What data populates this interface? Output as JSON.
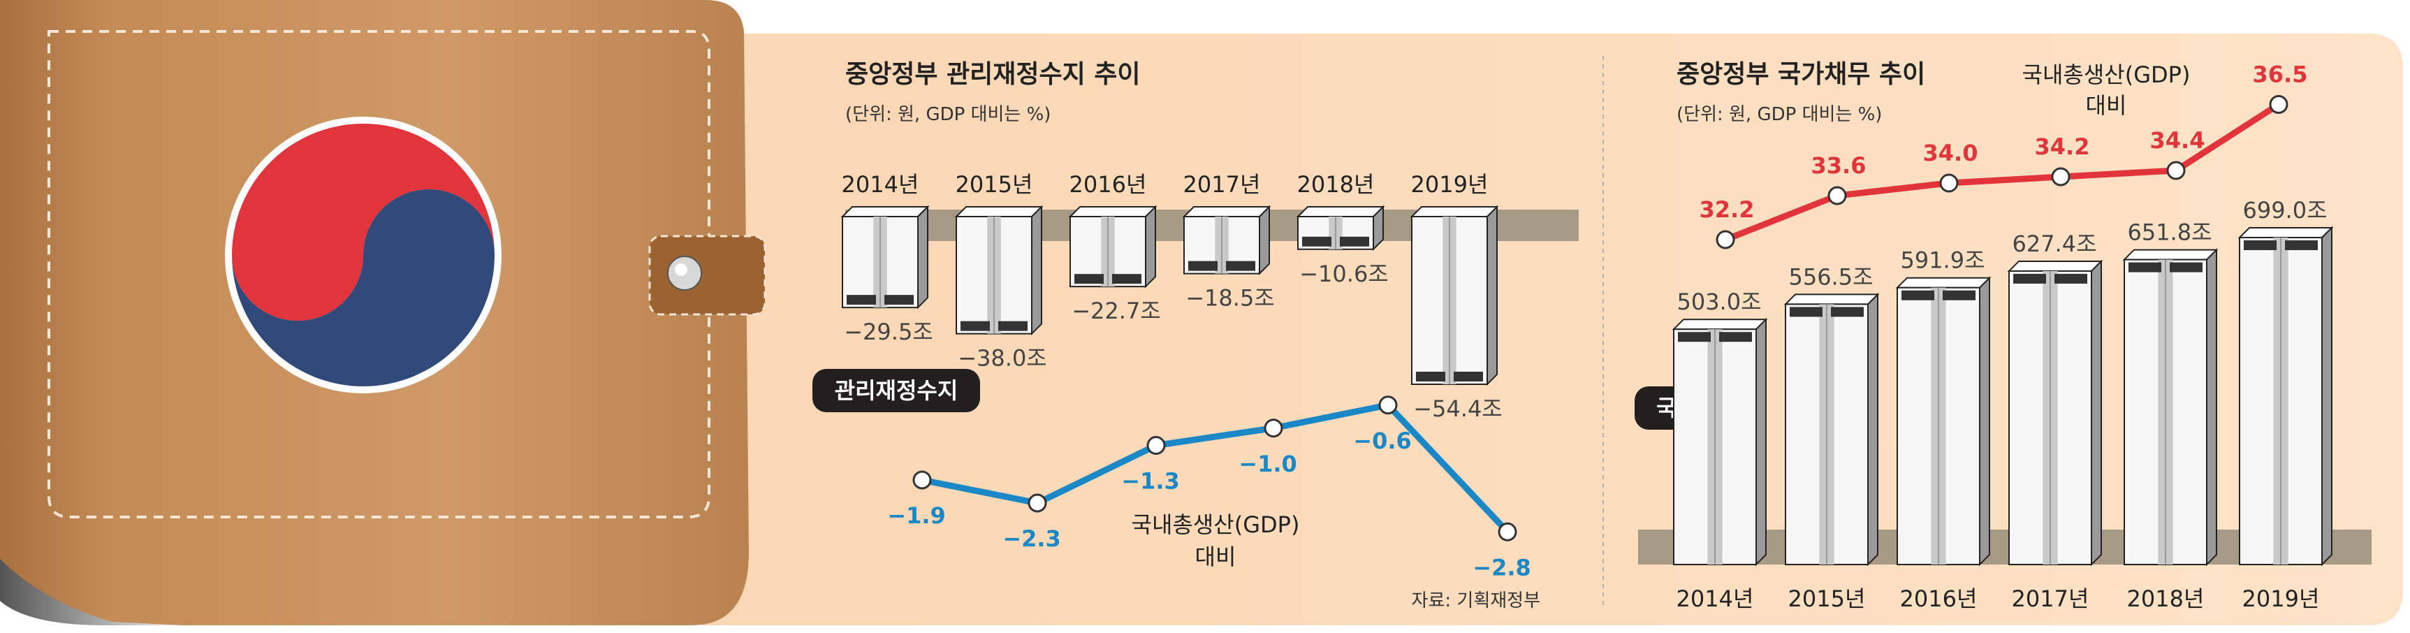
{
  "left_panel": {
    "title": "중앙정부 관리재정수지 추이",
    "unit": "(단위: 원, GDP 대비는 %)",
    "series_label": "관리재정수지",
    "ratio_label_line1": "국내총생산(GDP)",
    "ratio_label_line2": "대비",
    "source": "자료: 기획재정부"
  },
  "right_panel": {
    "title": "중앙정부 국가채무 추이",
    "unit": "(단위: 원, GDP 대비는 %)",
    "series_label": "국가채무",
    "ratio_label_line1": "국내총생산(GDP)",
    "ratio_label_line2": "대비"
  },
  "colors": {
    "wallet": "#c8925e",
    "wallet_dark": "#a8713f",
    "panel_bg": "#fcdcbc",
    "band": "#a79a85",
    "deficit_line": "#1a87c7",
    "debt_line": "#e1343b",
    "flag_blue": "#314a7a",
    "flag_red": "#e1343b"
  },
  "chart_data": [
    {
      "type": "bar",
      "title": "중앙정부 관리재정수지 추이",
      "categories": [
        "2014년",
        "2015년",
        "2016년",
        "2017년",
        "2018년",
        "2019년"
      ],
      "series": [
        {
          "name": "관리재정수지",
          "values": [
            -29.5,
            -38.0,
            -22.7,
            -18.5,
            -10.6,
            -54.4
          ],
          "labels": [
            "−29.5조",
            "−38.0조",
            "−22.7조",
            "−18.5조",
            "−10.6조",
            "−54.4조"
          ]
        },
        {
          "name": "국내총생산(GDP) 대비",
          "type": "line",
          "values": [
            -1.9,
            -2.3,
            -1.3,
            -1.0,
            -0.6,
            -2.8
          ],
          "labels": [
            "−1.9",
            "−2.3",
            "−1.3",
            "−1.0",
            "−0.6",
            "−2.8"
          ]
        }
      ]
    },
    {
      "type": "bar",
      "title": "중앙정부 국가채무 추이",
      "categories": [
        "2014년",
        "2015년",
        "2016년",
        "2017년",
        "2018년",
        "2019년"
      ],
      "series": [
        {
          "name": "국가채무",
          "values": [
            503.0,
            556.5,
            591.9,
            627.4,
            651.8,
            699.0
          ],
          "labels": [
            "503.0조",
            "556.5조",
            "591.9조",
            "627.4조",
            "651.8조",
            "699.0조"
          ]
        },
        {
          "name": "국내총생산(GDP) 대비",
          "type": "line",
          "values": [
            32.2,
            33.6,
            34.0,
            34.2,
            34.4,
            36.5
          ],
          "labels": [
            "32.2",
            "33.6",
            "34.0",
            "34.2",
            "34.4",
            "36.5"
          ]
        }
      ]
    }
  ]
}
